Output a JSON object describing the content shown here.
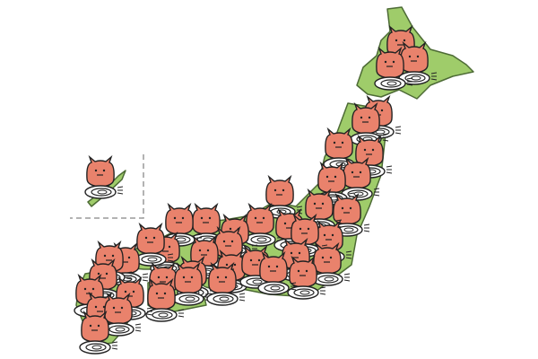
{
  "map": {
    "land_color": "#9fcc6a",
    "coast_color": "#4d6b35",
    "inset_border_color": "#9a9a9a",
    "regions": [
      "hokkaido",
      "honshu",
      "shikoku",
      "kyushu",
      "okinawa"
    ]
  },
  "mascot": {
    "icon": "horned-mascot-with-spiral-icon",
    "head_color": "#e9826c",
    "outline_color": "#222222",
    "spiral_color": "#ffffff"
  }
}
